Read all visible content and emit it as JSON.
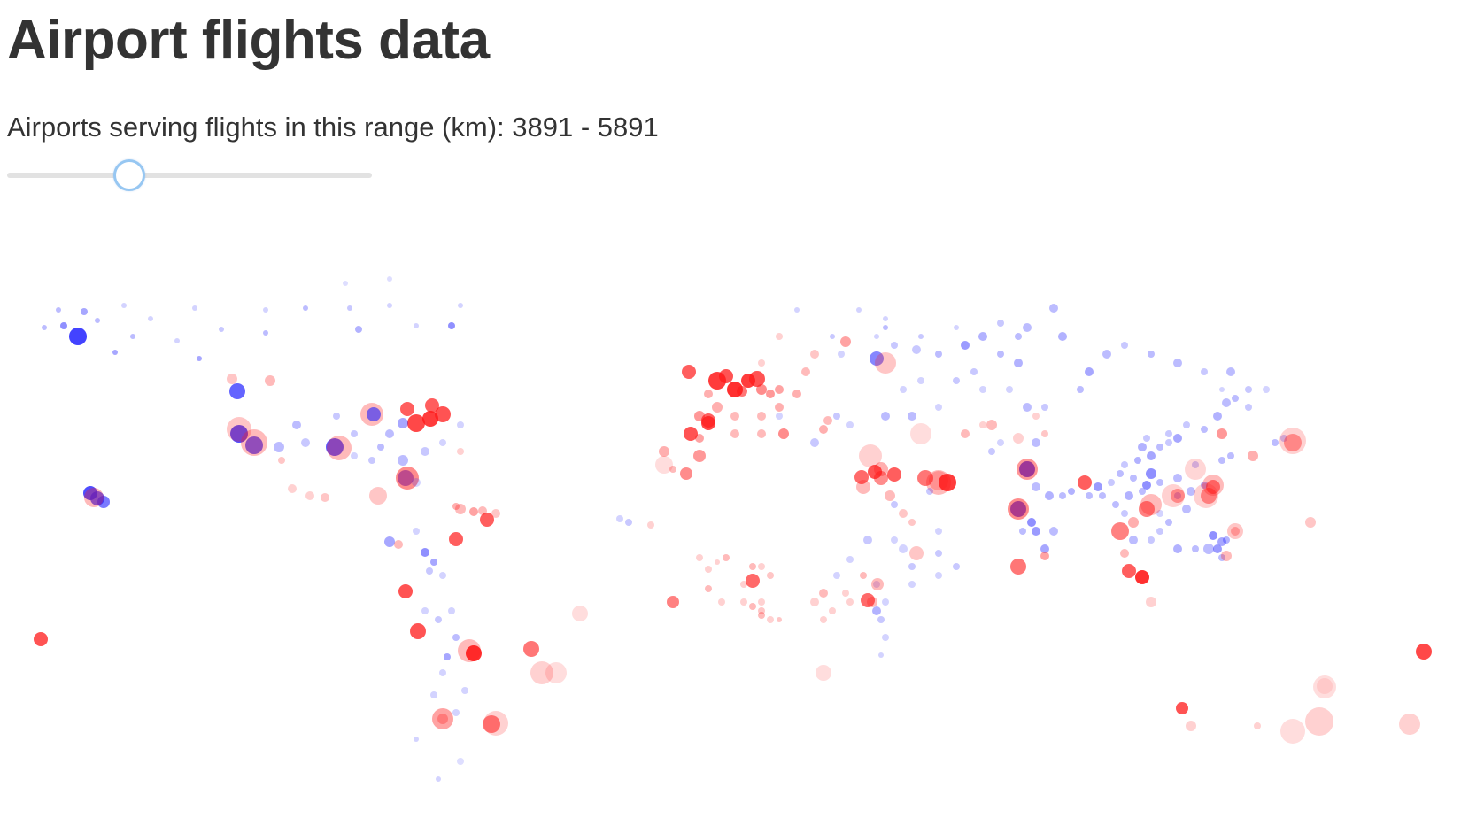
{
  "page": {
    "title": "Airport flights data",
    "range_label": "Airports serving flights in this range (km):",
    "range_min": 3891,
    "range_max": 5891,
    "range_separator": " - "
  },
  "slider": {
    "position_fraction": 0.336
  },
  "colors": {
    "low_traffic": "#2222ff",
    "high_traffic": "#ff1a1a",
    "track": "#e2e2e2",
    "thumb_border": "#97c7f2",
    "heading_text": "#333333"
  },
  "map_layer": {
    "type": "bubble-map",
    "projection": "equirectangular",
    "bubble_color_meaning": "blue = fewer flights in range, red = more flights in range"
  }
}
